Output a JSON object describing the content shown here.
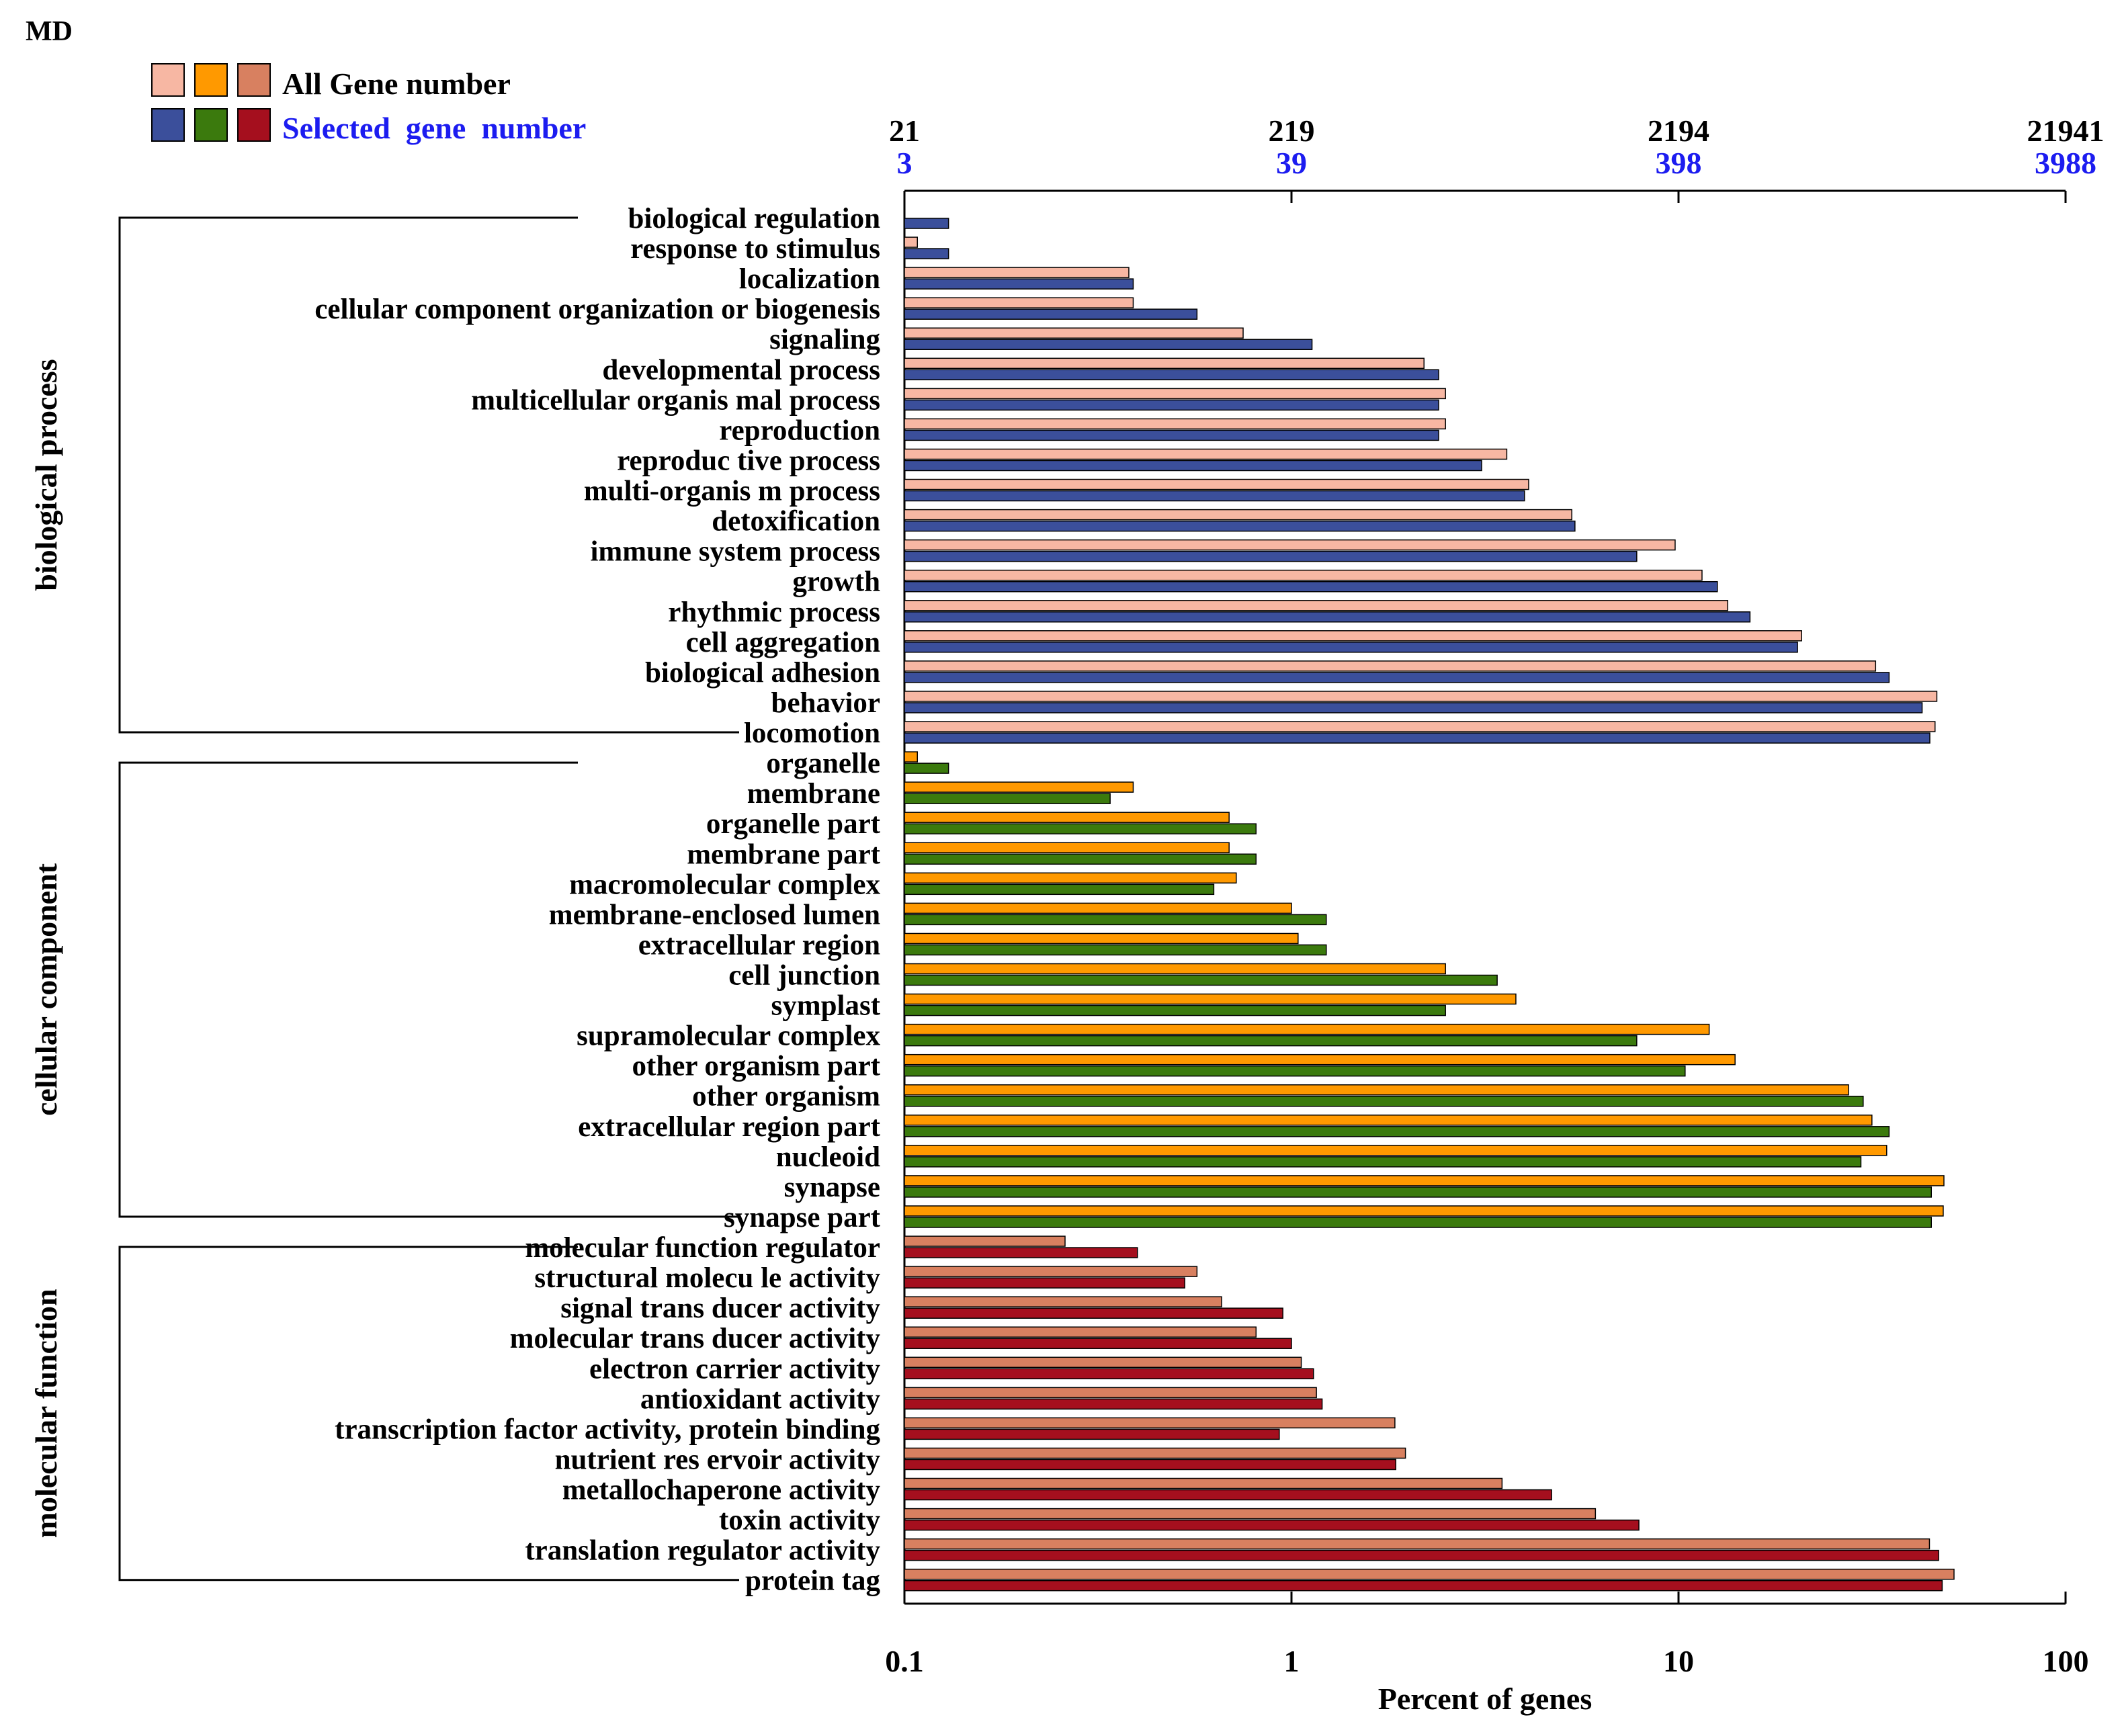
{
  "chart_data": {
    "type": "bar",
    "orientation": "horizontal",
    "corner_label": "MD",
    "legend": {
      "all_label": "All Gene number",
      "selected_label": "Selected  gene  number",
      "all_colors": [
        "#f7b7a3",
        "#ff9900",
        "#d88060"
      ],
      "selected_colors": [
        "#3b4f9b",
        "#3b7a0d",
        "#a50f1e"
      ]
    },
    "x_axis": {
      "scale": "log",
      "range": [
        0.1,
        100
      ],
      "ticks": [
        0.1,
        1,
        10,
        100
      ],
      "tick_labels": [
        "0.1",
        "1",
        "10",
        "100"
      ],
      "label": "Percent of genes"
    },
    "top_axis": {
      "all_gene_ticks": [
        "21",
        "219",
        "2194",
        "21941"
      ],
      "selected_gene_ticks": [
        "3",
        "39",
        "398",
        "3988"
      ]
    },
    "series": [
      {
        "name": "All Gene number"
      },
      {
        "name": "Selected gene number"
      }
    ],
    "groups": [
      {
        "name": "biological process",
        "all_color": "#f7b7a3",
        "selected_color": "#3b4f9b",
        "categories": [
          "biological  regulation",
          "response  to  stimulus",
          "localization",
          "cellular  component  organization or  biogenesis",
          "signaling",
          "developmental  process",
          "multicellular organis mal  process",
          "reproduction",
          "reproduc tive  process",
          "multi-organis m  process",
          "detoxification",
          "immune  system  process",
          "growth",
          "rhythmic  process",
          "cell aggregation",
          "biological  adhesion",
          "behavior",
          "locomotion"
        ],
        "all": [
          null,
          0.108,
          0.38,
          0.39,
          0.75,
          2.2,
          2.5,
          2.5,
          3.6,
          4.1,
          5.3,
          9.8,
          11.5,
          13.4,
          20.8,
          32.3,
          46.5,
          46.0
        ],
        "selected": [
          0.13,
          0.13,
          0.39,
          0.57,
          1.13,
          2.4,
          2.4,
          2.4,
          3.1,
          4.0,
          5.4,
          7.8,
          12.6,
          15.3,
          20.3,
          35.0,
          42.6,
          44.6
        ]
      },
      {
        "name": "cellular component",
        "all_color": "#ff9900",
        "selected_color": "#3b7a0d",
        "categories": [
          "organelle",
          "membrane",
          "organelle part",
          "membrane part",
          "macromolecular  complex",
          "membrane-enclosed  lumen",
          "extracellular  region",
          "cell junction",
          "symplast",
          "supramolecular  complex",
          "other organism part",
          "other organism",
          "extracellular region  part",
          "nucleoid",
          "synapse",
          "synapse  part"
        ],
        "all": [
          0.108,
          0.39,
          0.69,
          0.69,
          0.72,
          1.0,
          1.04,
          2.5,
          3.8,
          12.0,
          14.0,
          27.5,
          31.6,
          34.5,
          48.5,
          48.3
        ],
        "selected": [
          0.13,
          0.34,
          0.81,
          0.81,
          0.63,
          1.23,
          1.23,
          3.4,
          2.5,
          7.8,
          10.4,
          30.0,
          35.0,
          29.6,
          45.0,
          45.0
        ]
      },
      {
        "name": "molecular function",
        "all_color": "#d88060",
        "selected_color": "#a50f1e",
        "categories": [
          "molecular  function  regulator",
          "structural molecu le  activity",
          "signal trans ducer activity",
          "molecular trans ducer activity",
          "electron  carrier activity",
          "antioxidant activity",
          "transcription  factor activity, protein binding",
          "nutrient res ervoir activity",
          "metallochaperone  activity",
          "toxin  activity",
          "translation  regulator activity",
          "protein tag"
        ],
        "all": [
          0.26,
          0.57,
          0.66,
          0.81,
          1.06,
          1.16,
          1.85,
          1.97,
          3.5,
          6.1,
          44.5,
          51.5
        ],
        "selected": [
          0.4,
          0.53,
          0.95,
          1.0,
          1.14,
          1.2,
          0.93,
          1.86,
          4.7,
          7.9,
          47.0,
          48.0
        ]
      }
    ]
  }
}
